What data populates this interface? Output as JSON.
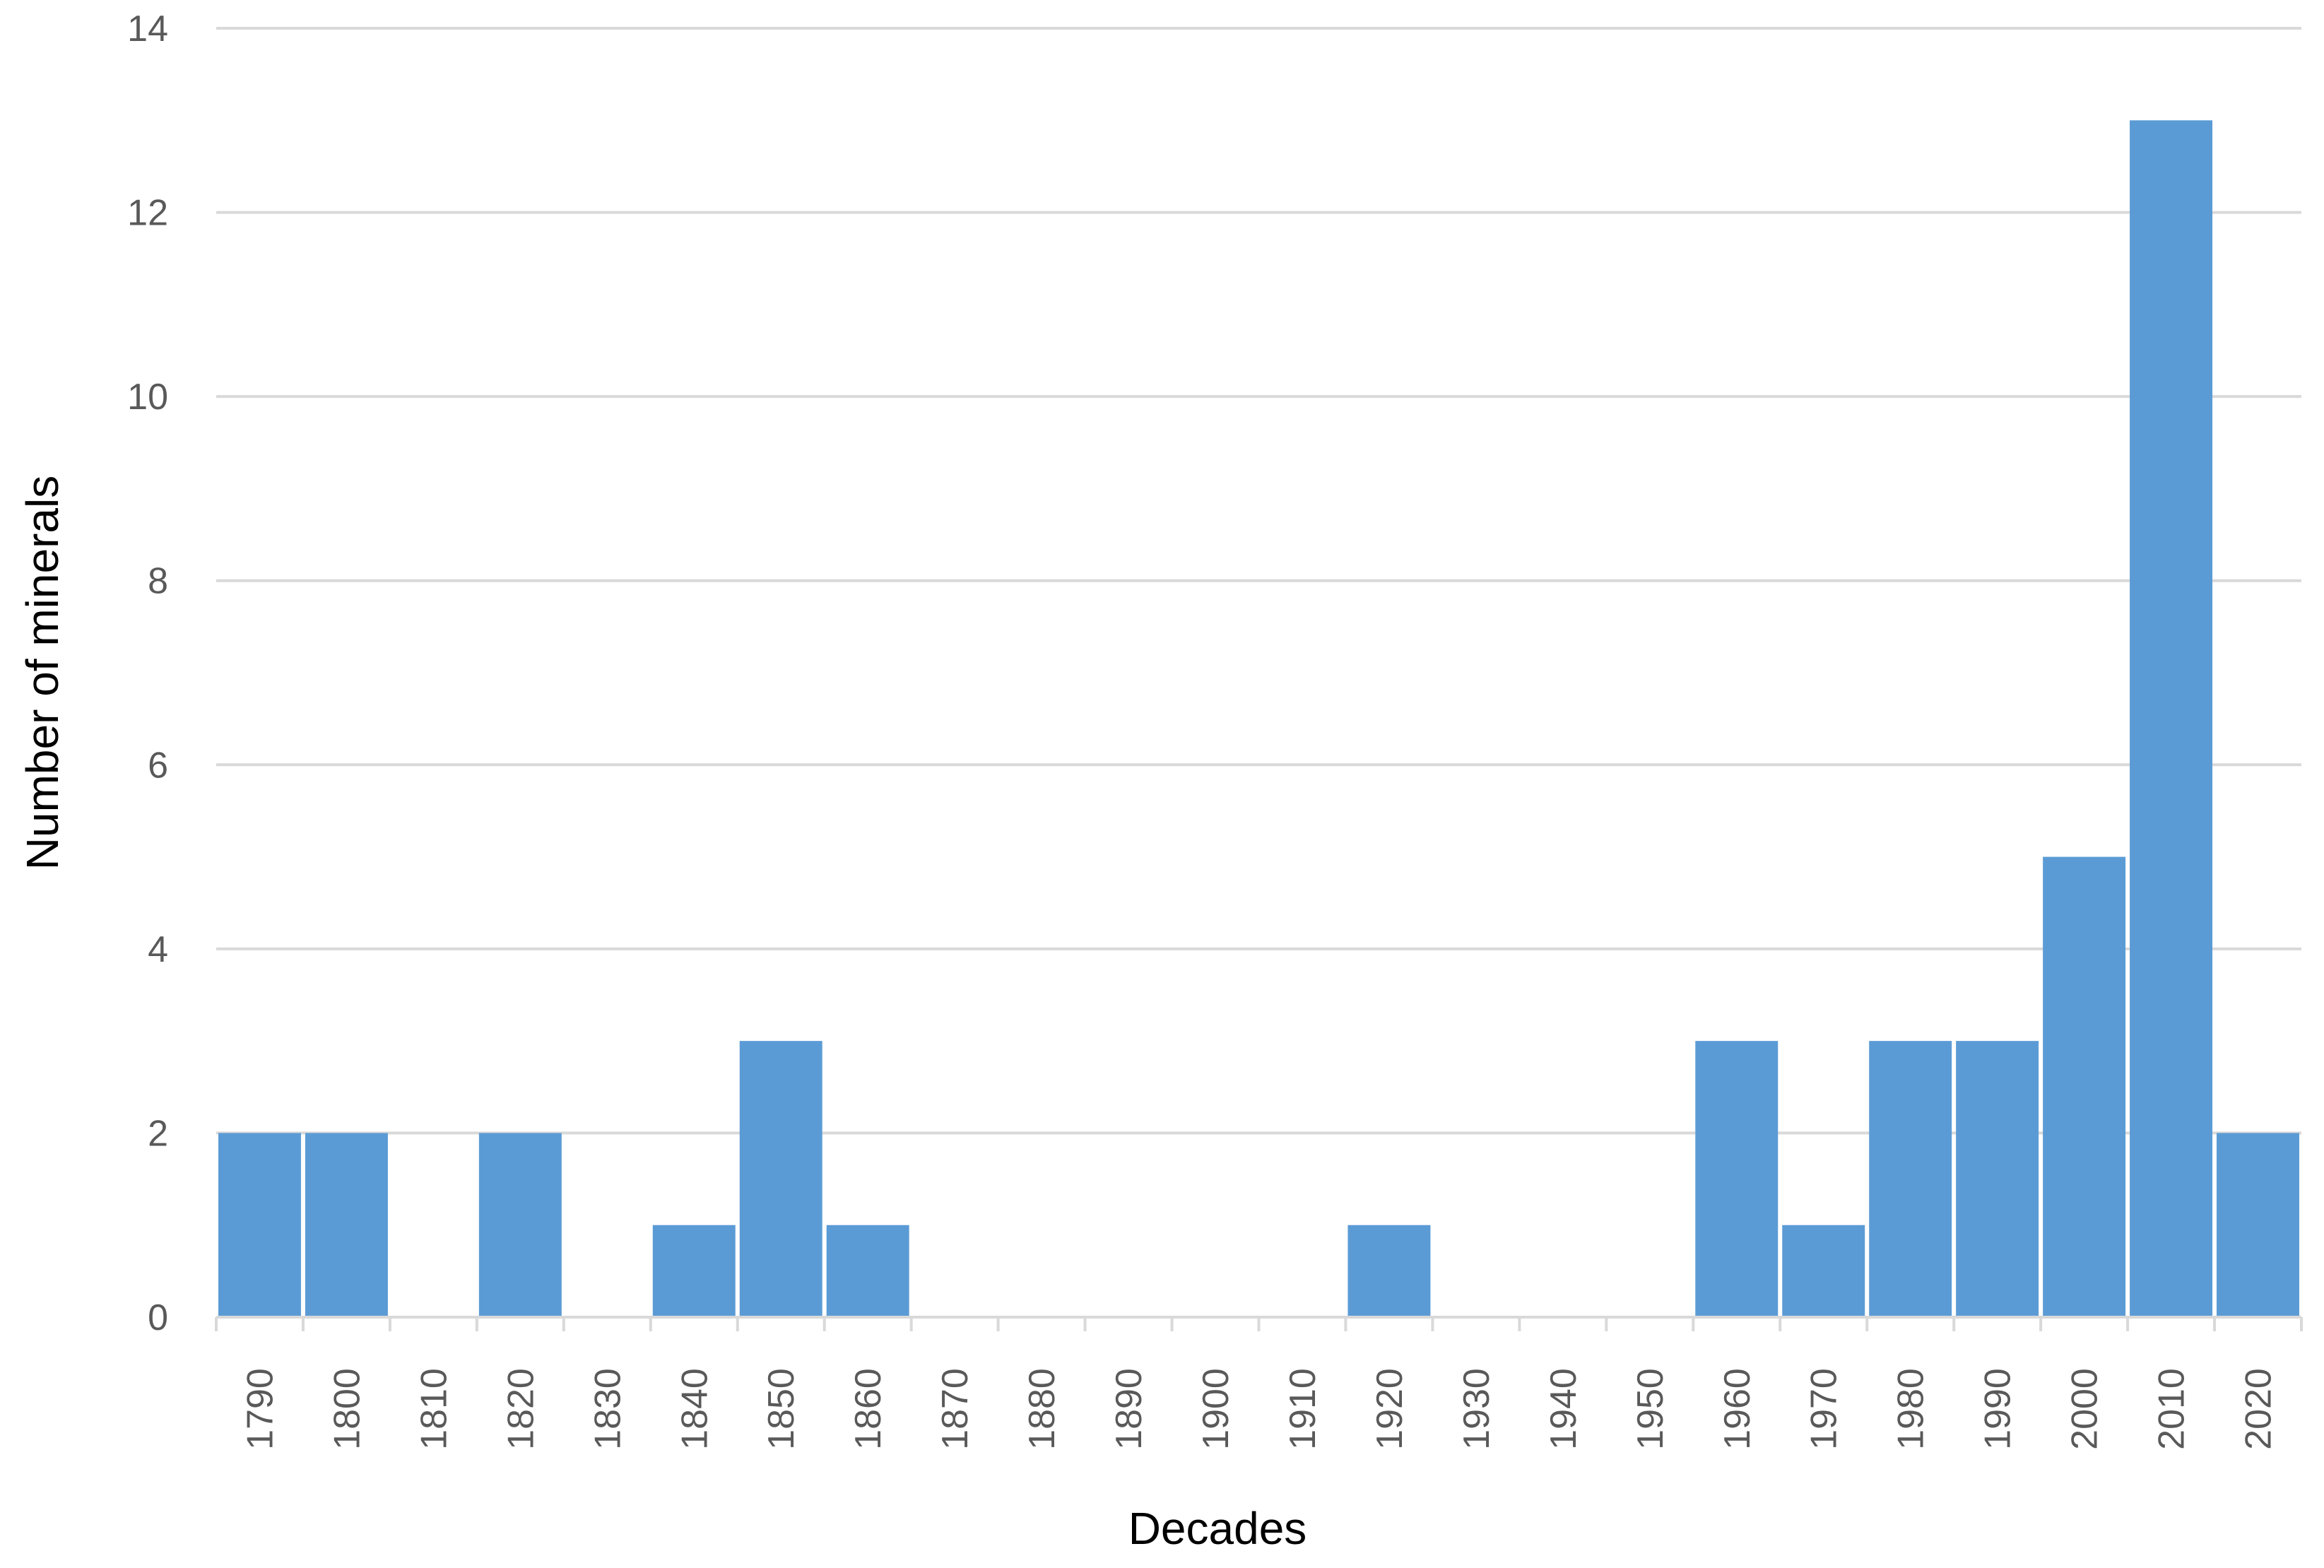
{
  "chart_data": {
    "type": "bar",
    "title": "",
    "xlabel": "Decades",
    "ylabel": "Number of minerals",
    "categories": [
      "1790",
      "1800",
      "1810",
      "1820",
      "1830",
      "1840",
      "1850",
      "1860",
      "1870",
      "1880",
      "1890",
      "1900",
      "1910",
      "1920",
      "1930",
      "1940",
      "1950",
      "1960",
      "1970",
      "1980",
      "1990",
      "2000",
      "2010",
      "2020"
    ],
    "values": [
      2,
      2,
      0,
      2,
      0,
      1,
      3,
      1,
      0,
      0,
      0,
      0,
      0,
      1,
      0,
      0,
      0,
      3,
      1,
      3,
      3,
      5,
      13,
      2
    ],
    "ylim": [
      0,
      14
    ],
    "yticks": [
      0,
      2,
      4,
      6,
      8,
      10,
      12,
      14
    ],
    "grid": true,
    "bar_color": "#5b9bd5",
    "grid_color": "#d9d9d9",
    "legend": "none"
  }
}
